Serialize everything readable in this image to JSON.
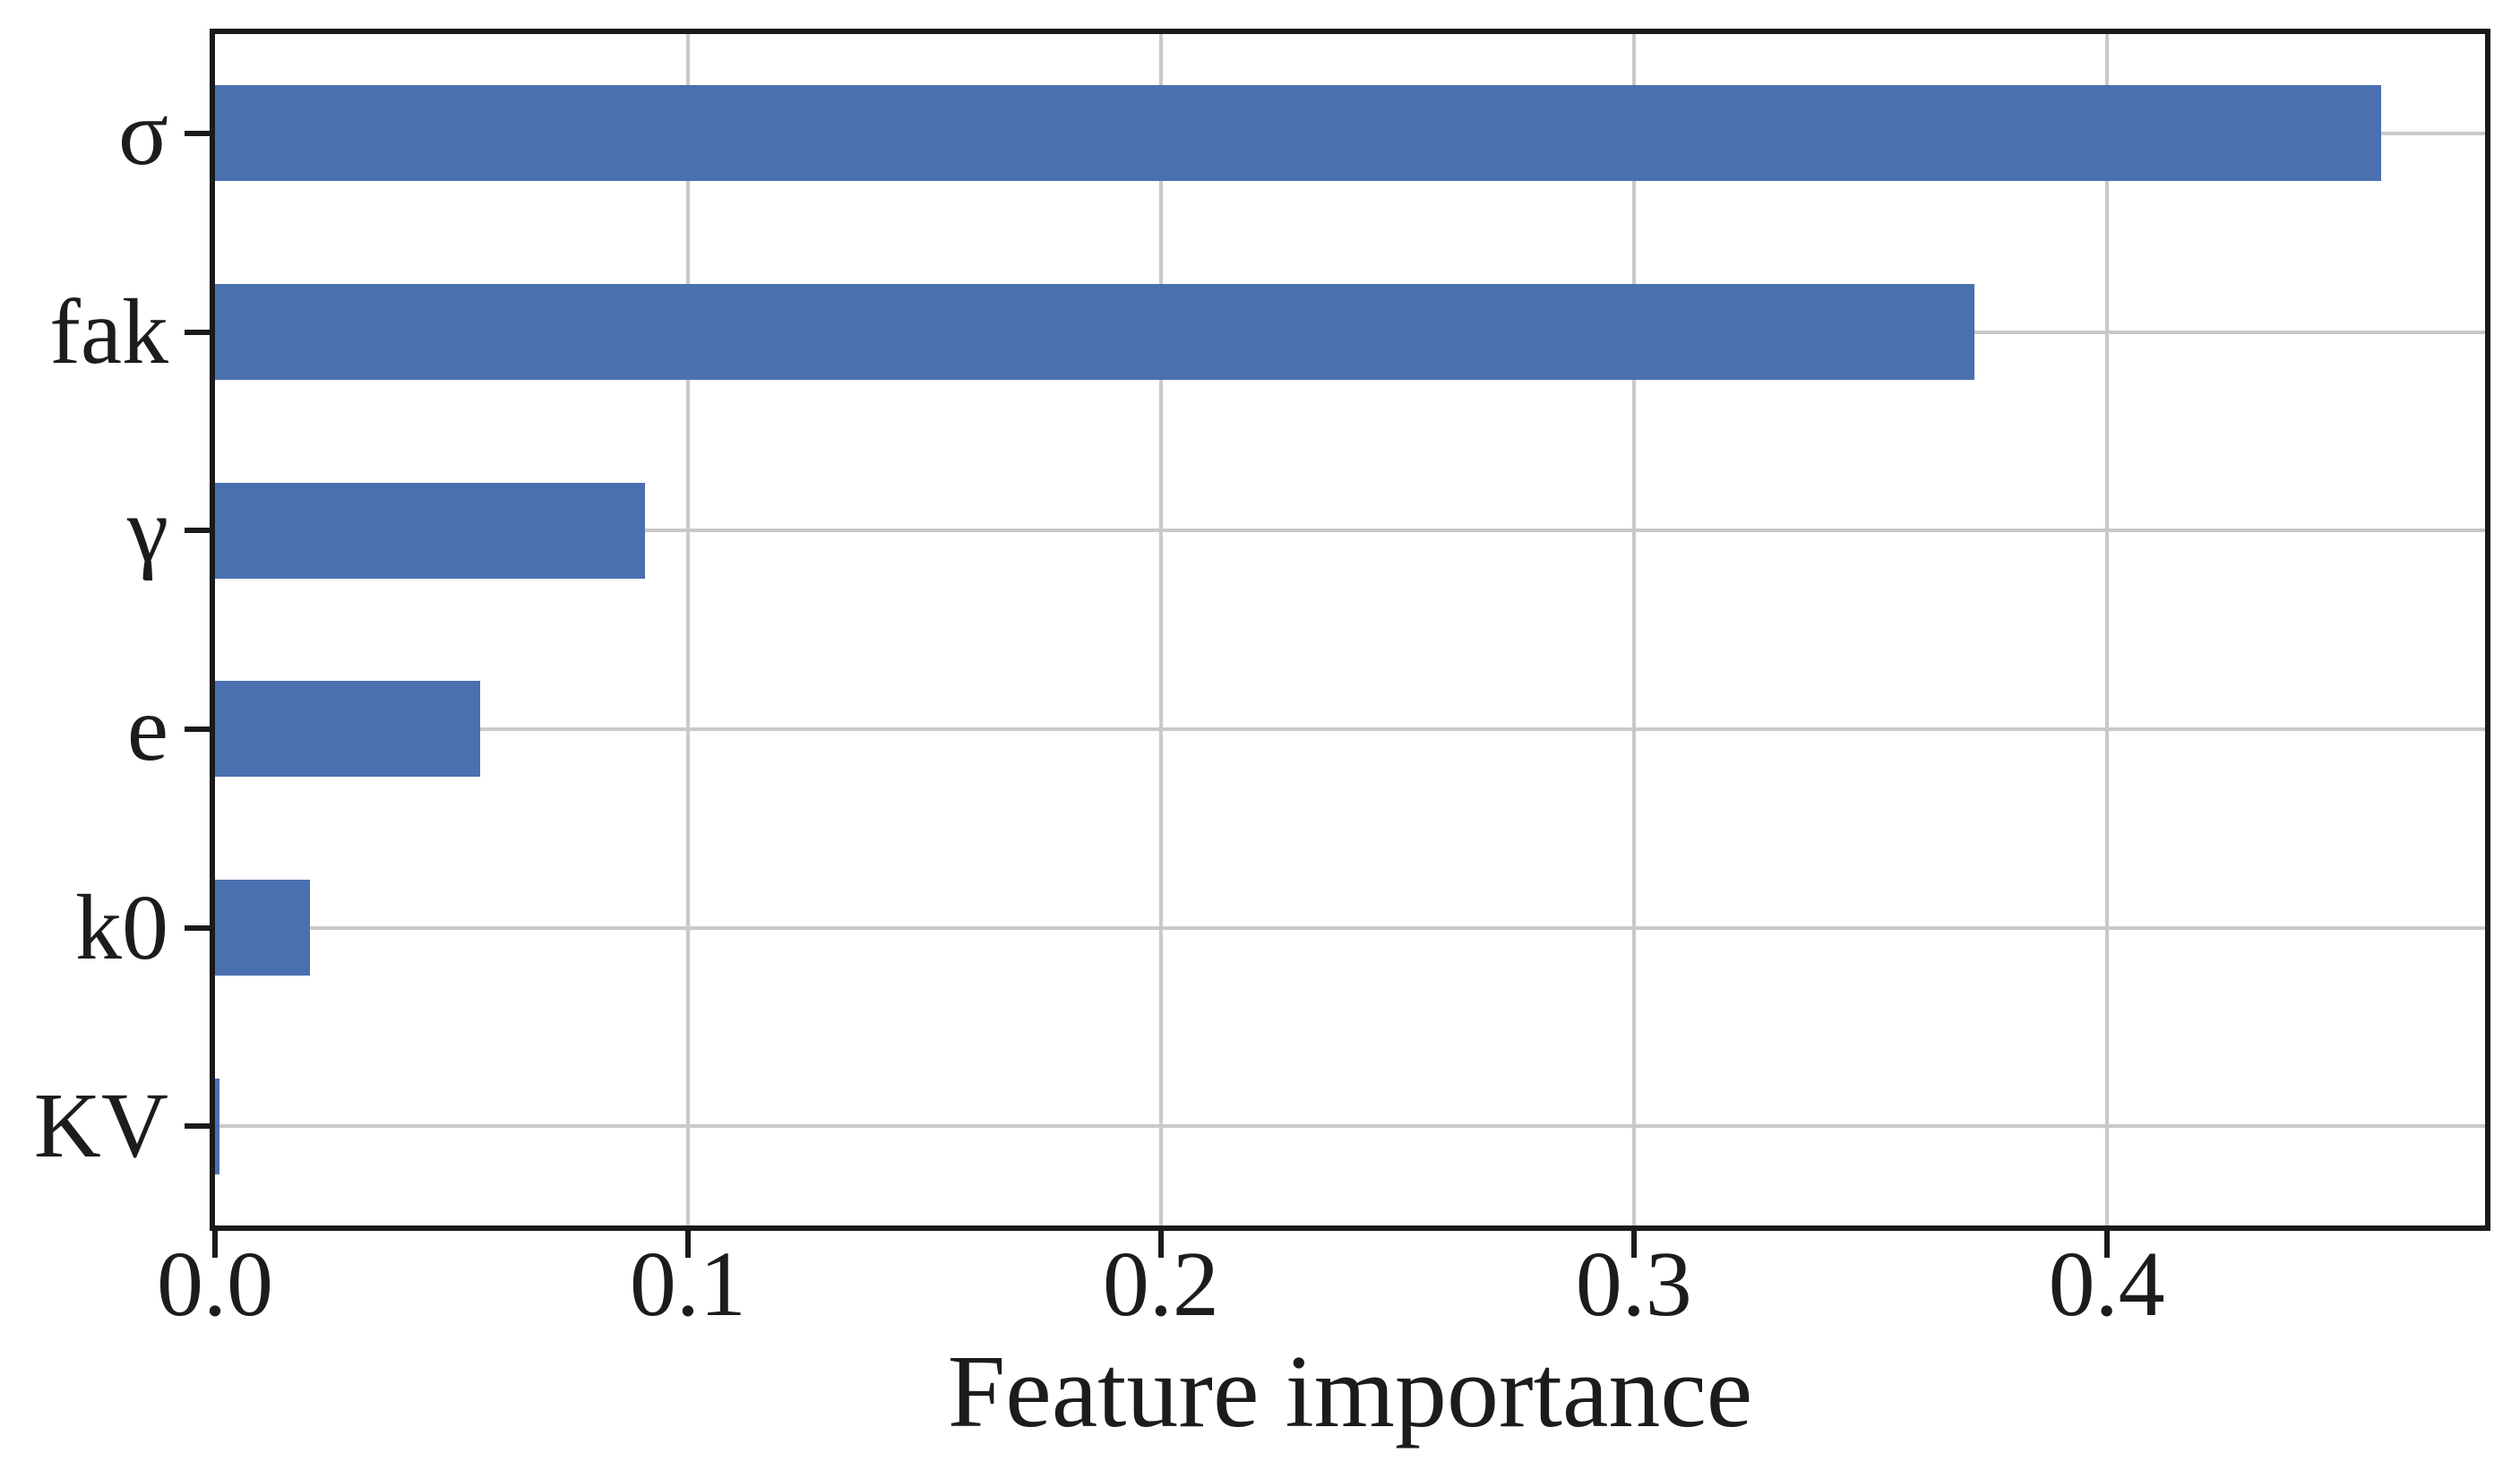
{
  "chart_data": {
    "type": "bar",
    "orientation": "horizontal",
    "title": "",
    "xlabel": "Feature importance",
    "ylabel": "",
    "categories": [
      "σ",
      "fak",
      "γ",
      "e",
      "k0",
      "KV"
    ],
    "values": [
      0.458,
      0.372,
      0.091,
      0.056,
      0.02,
      0.001
    ],
    "xlim": [
      0,
      0.48
    ],
    "xticks": [
      0.0,
      0.1,
      0.2,
      0.3,
      0.4
    ],
    "xtick_labels": [
      "0.0",
      "0.1",
      "0.2",
      "0.3",
      "0.4"
    ],
    "grid": true,
    "legend": false,
    "colors": {
      "bar": "#4a70b0",
      "grid": "#c9c9c9",
      "axis": "#1a1a1a",
      "text": "#1c1c1c",
      "background": "#ffffff"
    }
  }
}
